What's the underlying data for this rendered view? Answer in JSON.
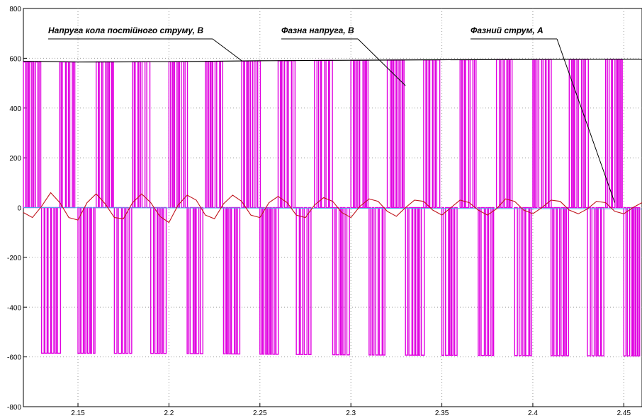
{
  "chart_data": {
    "type": "line",
    "title": "",
    "xlabel": "",
    "ylabel": "",
    "xlim": [
      2.12,
      2.46
    ],
    "ylim": [
      -800,
      800
    ],
    "grid": true,
    "x_ticks": [
      2.15,
      2.2,
      2.25,
      2.3,
      2.35,
      2.4,
      2.45
    ],
    "y_ticks": [
      -800,
      -600,
      -400,
      -200,
      0,
      200,
      400,
      600,
      800
    ],
    "x_tick_labels": [
      "2.15",
      "2.2",
      "2.25",
      "2.3",
      "2.35",
      "2.4",
      "2.45"
    ],
    "y_tick_labels": [
      "-800",
      "-600",
      "-400",
      "-200",
      "0",
      "200",
      "400",
      "600",
      "800"
    ],
    "series": [
      {
        "name": "Напруга кола постійного струму, В",
        "color": "#000000",
        "x": [
          2.12,
          2.15,
          2.2,
          2.25,
          2.3,
          2.35,
          2.4,
          2.46
        ],
        "values": [
          588,
          585,
          586,
          590,
          592,
          594,
          595,
          596
        ]
      },
      {
        "name": "Фазна напруга, В",
        "color": "#e000e0",
        "pulse_envelope": {
          "x": [
            2.12,
            2.2,
            2.3,
            2.4,
            2.46
          ],
          "positive": [
            585,
            586,
            592,
            595,
            596
          ],
          "negative": [
            -585,
            -586,
            -592,
            -595,
            -596
          ]
        }
      },
      {
        "name": "Фазний струм, А",
        "color": "#c0141c",
        "x": [
          2.12,
          2.125,
          2.13,
          2.135,
          2.14,
          2.145,
          2.15,
          2.155,
          2.16,
          2.165,
          2.17,
          2.175,
          2.18,
          2.185,
          2.19,
          2.195,
          2.2,
          2.205,
          2.21,
          2.215,
          2.22,
          2.225,
          2.23,
          2.235,
          2.24,
          2.245,
          2.25,
          2.255,
          2.26,
          2.265,
          2.27,
          2.275,
          2.28,
          2.285,
          2.29,
          2.295,
          2.3,
          2.305,
          2.31,
          2.315,
          2.32,
          2.325,
          2.33,
          2.335,
          2.34,
          2.345,
          2.35,
          2.355,
          2.36,
          2.365,
          2.37,
          2.375,
          2.38,
          2.385,
          2.39,
          2.395,
          2.4,
          2.405,
          2.41,
          2.415,
          2.42,
          2.425,
          2.43,
          2.435,
          2.44,
          2.445,
          2.45,
          2.455,
          2.46
        ],
        "values": [
          -20,
          -40,
          5,
          60,
          20,
          -40,
          -50,
          20,
          55,
          15,
          -40,
          -45,
          20,
          55,
          20,
          -35,
          -60,
          10,
          50,
          30,
          -30,
          -45,
          15,
          50,
          25,
          -30,
          -40,
          20,
          45,
          20,
          -30,
          -40,
          10,
          40,
          25,
          -20,
          -40,
          5,
          35,
          25,
          -15,
          -35,
          0,
          30,
          25,
          -10,
          -30,
          0,
          30,
          20,
          -10,
          -30,
          -5,
          35,
          25,
          -10,
          -25,
          0,
          30,
          25,
          -10,
          -25,
          -5,
          25,
          20,
          -15,
          -25,
          0,
          20
        ]
      },
      {
        "name": "",
        "color": "#4aa8e8",
        "x": [
          2.12,
          2.46
        ],
        "values": [
          0,
          -5
        ]
      }
    ],
    "annotations": [
      {
        "text": "Напруга кола постійного струму, В",
        "target_x": 2.24,
        "target_y": 590
      },
      {
        "text": "Фазна напруга, В",
        "target_x": 2.33,
        "target_y": 490
      },
      {
        "text": "Фазний струм, А",
        "target_x": 2.445,
        "target_y": 20
      }
    ]
  }
}
